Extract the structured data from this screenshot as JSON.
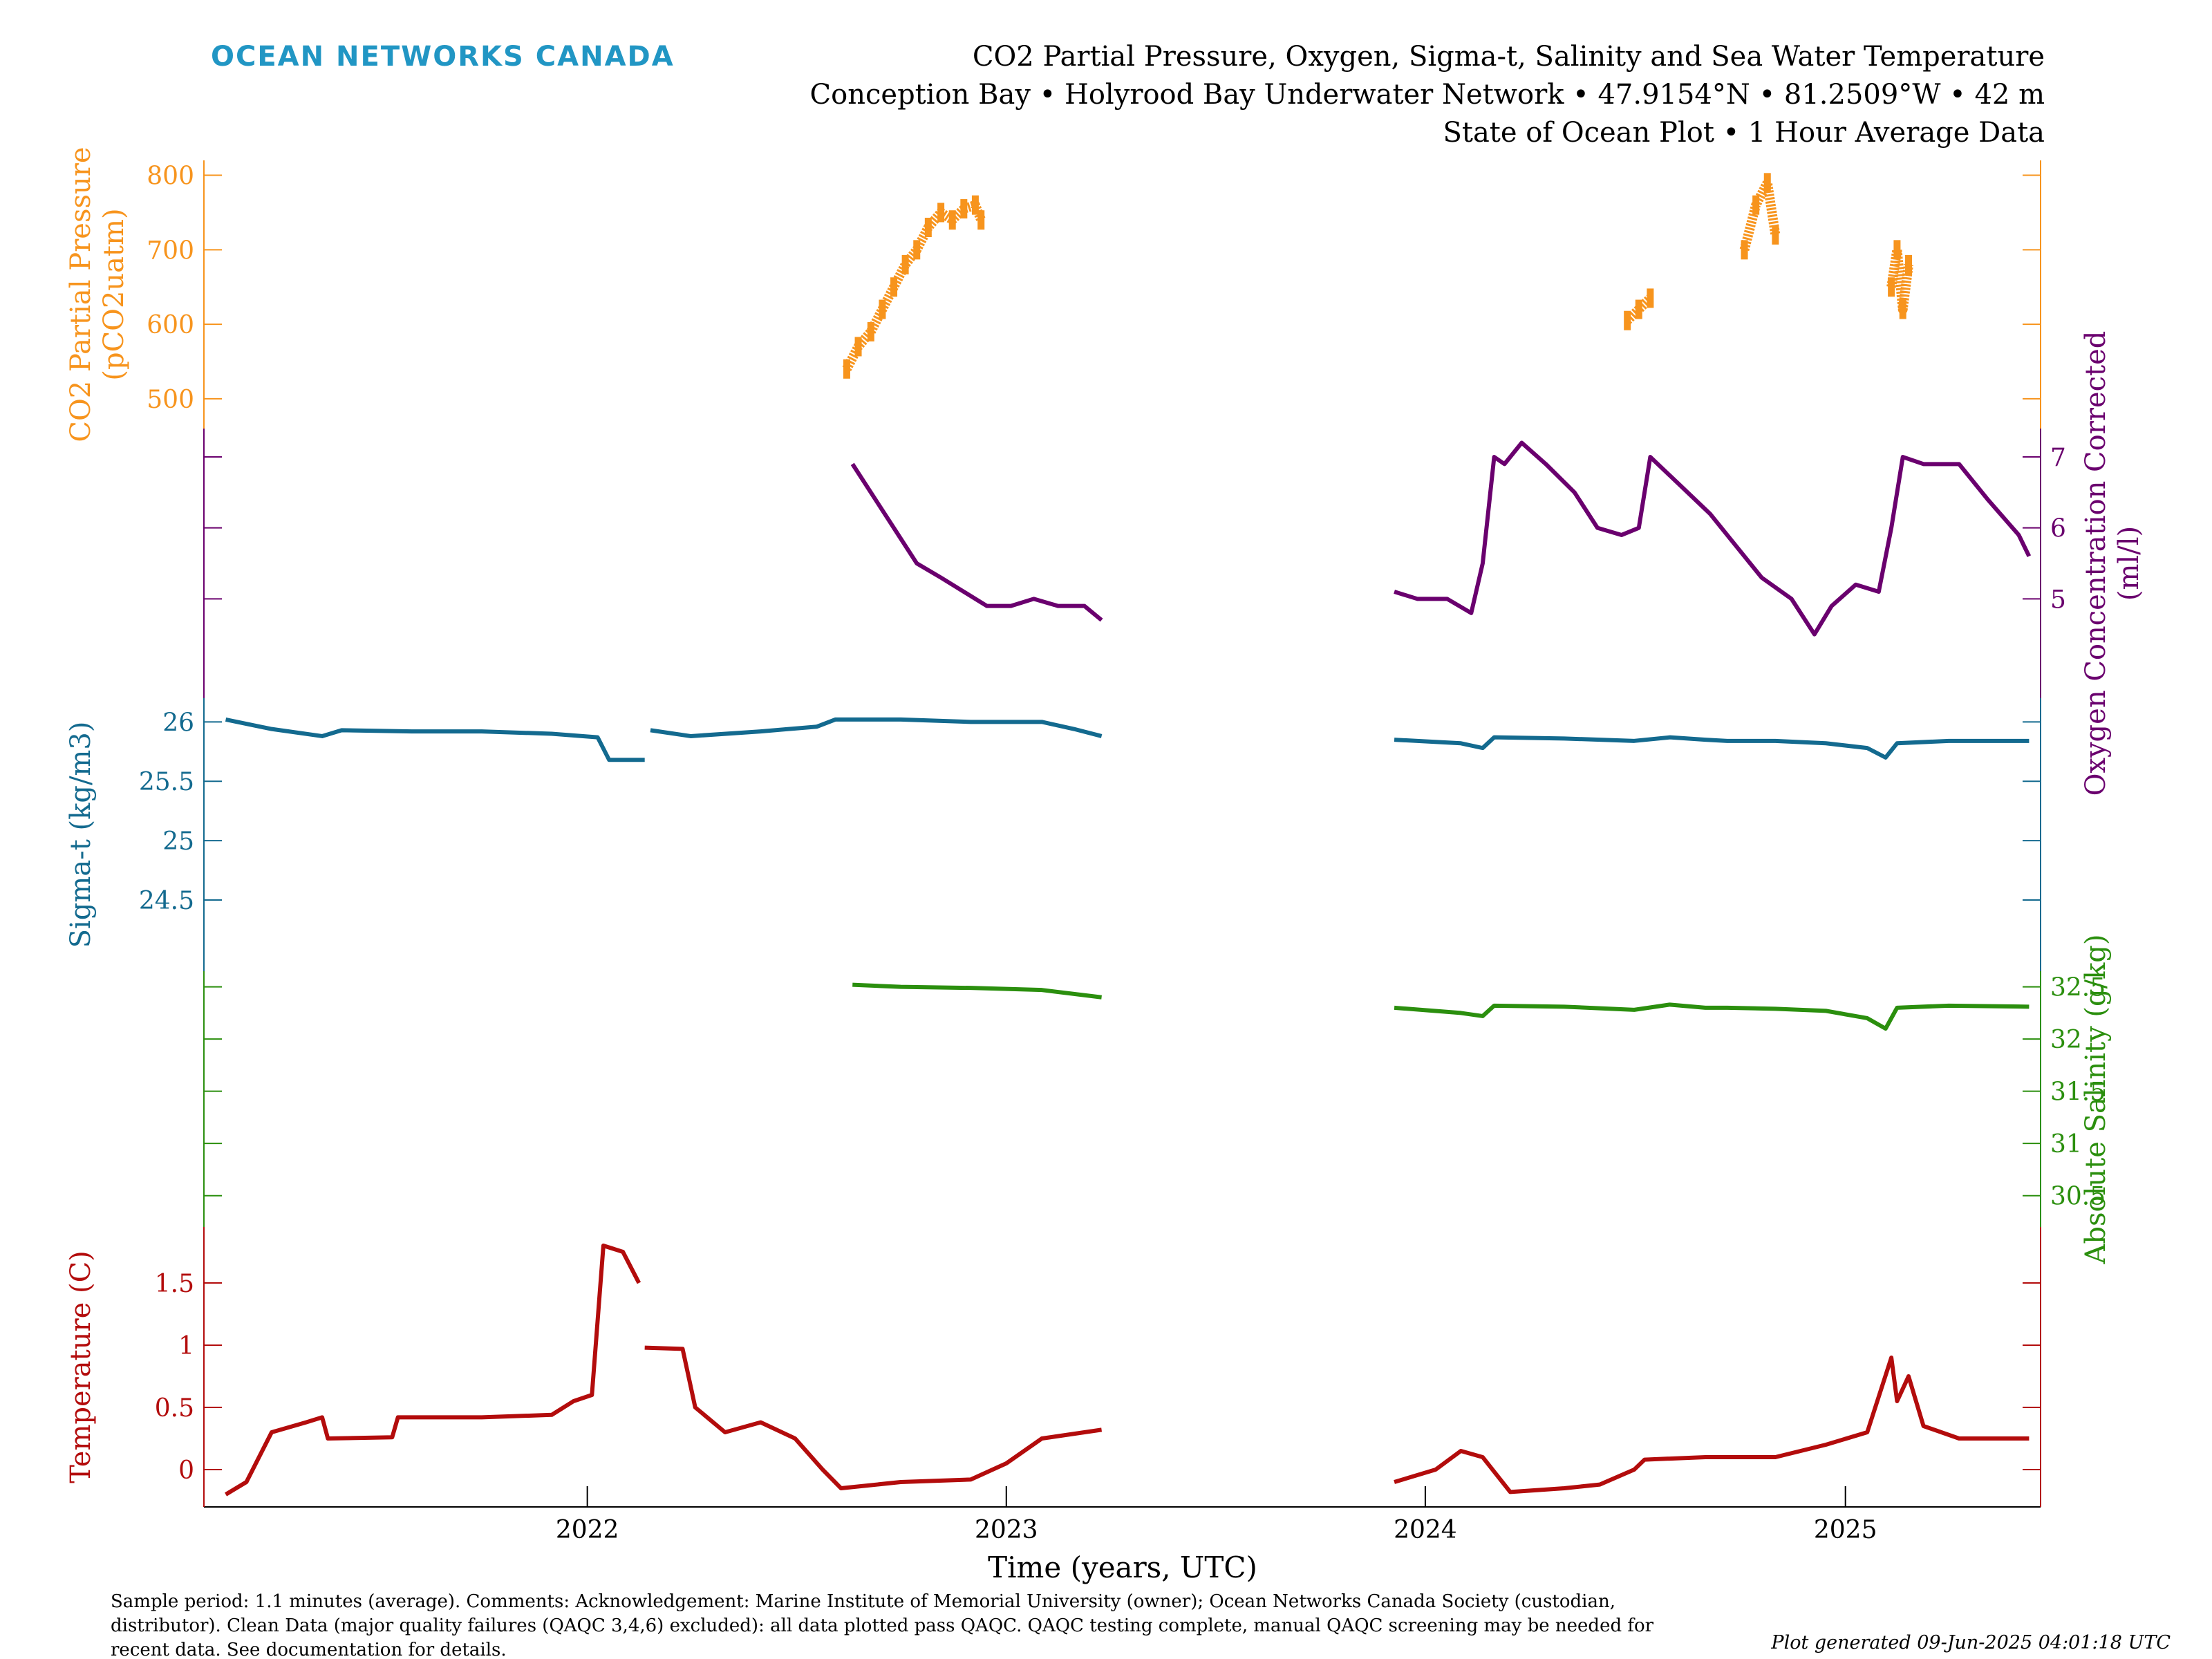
{
  "brand": {
    "name": "OCEAN NETWORKS CANADA",
    "color": "#2196c4"
  },
  "header": {
    "line1": "CO2 Partial Pressure, Oxygen, Sigma-t, Salinity and Sea Water Temperature",
    "line2": "Conception Bay • Holyrood Bay Underwater Network • 47.9154°N • 81.2509°W • 42 m",
    "line3": "State of Ocean Plot • 1 Hour Average Data"
  },
  "footer": {
    "line1": "Sample period: 1.1 minutes (average). Comments: Acknowledgement: Marine Institute of Memorial University (owner); Ocean Networks Canada Society (custodian,",
    "line2": "distributor). Clean Data (major quality failures (QAQC 3,4,6) excluded): all data plotted pass QAQC. QAQC testing complete, manual QAQC screening may be needed for",
    "line3": "recent data. See documentation for details.",
    "generated": "Plot generated 09-Jun-2025 04:01:18 UTC"
  },
  "chart_data": {
    "type": "line",
    "xlabel": "Time (years, UTC)",
    "x_ticks": [
      "2022",
      "2023",
      "2024",
      "2025"
    ],
    "x_range": [
      "2021-02-01",
      "2025-06-20"
    ],
    "grid": false,
    "legend": "none",
    "panels": [
      {
        "name": "co2",
        "ylabel": "CO2 Partial Pressure",
        "ylabel2": "(pCO2uatm)",
        "axis_side": "left",
        "color": "#f7941d",
        "ylim": [
          460,
          820
        ],
        "yticks": [
          500,
          600,
          700,
          800
        ],
        "marker_only": true,
        "segments": [
          {
            "points": [
              [
                "2022-08-15",
                540
              ],
              [
                "2022-08-25",
                570
              ],
              [
                "2022-09-05",
                590
              ],
              [
                "2022-09-15",
                620
              ],
              [
                "2022-09-25",
                650
              ],
              [
                "2022-10-05",
                680
              ],
              [
                "2022-10-15",
                700
              ],
              [
                "2022-10-25",
                730
              ],
              [
                "2022-11-05",
                750
              ],
              [
                "2022-11-15",
                740
              ],
              [
                "2022-11-25",
                755
              ],
              [
                "2022-12-05",
                760
              ],
              [
                "2022-12-10",
                740
              ]
            ]
          },
          {
            "points": [
              [
                "2024-06-25",
                605
              ],
              [
                "2024-07-05",
                620
              ],
              [
                "2024-07-15",
                635
              ]
            ]
          },
          {
            "points": [
              [
                "2024-10-05",
                700
              ],
              [
                "2024-10-15",
                760
              ],
              [
                "2024-10-25",
                790
              ],
              [
                "2024-11-01",
                720
              ]
            ]
          },
          {
            "points": [
              [
                "2025-02-10",
                650
              ],
              [
                "2025-02-15",
                700
              ],
              [
                "2025-02-20",
                620
              ],
              [
                "2025-02-25",
                680
              ]
            ]
          }
        ]
      },
      {
        "name": "oxygen",
        "ylabel": "Oxygen Concentration Corrected",
        "ylabel2": "(ml/l)",
        "axis_side": "right",
        "color": "#6a006e",
        "ylim": [
          3.6,
          7.4
        ],
        "yticks": [
          5,
          6,
          7
        ],
        "segments": [
          {
            "points": [
              [
                "2022-08-20",
                6.9
              ],
              [
                "2022-09-05",
                6.5
              ],
              [
                "2022-09-25",
                6.0
              ],
              [
                "2022-10-15",
                5.5
              ],
              [
                "2022-11-05",
                5.3
              ],
              [
                "2022-11-25",
                5.1
              ],
              [
                "2022-12-15",
                4.9
              ],
              [
                "2023-01-05",
                4.9
              ],
              [
                "2023-01-25",
                5.0
              ],
              [
                "2023-02-15",
                4.9
              ],
              [
                "2023-03-10",
                4.9
              ],
              [
                "2023-03-25",
                4.7
              ]
            ]
          },
          {
            "points": [
              [
                "2023-12-05",
                5.1
              ],
              [
                "2023-12-25",
                5.0
              ],
              [
                "2024-01-20",
                5.0
              ],
              [
                "2024-02-10",
                4.8
              ],
              [
                "2024-02-20",
                5.5
              ],
              [
                "2024-03-01",
                7.0
              ],
              [
                "2024-03-10",
                6.9
              ],
              [
                "2024-03-25",
                7.2
              ],
              [
                "2024-04-15",
                6.9
              ],
              [
                "2024-05-10",
                6.5
              ],
              [
                "2024-05-30",
                6.0
              ],
              [
                "2024-06-20",
                5.9
              ],
              [
                "2024-07-05",
                6.0
              ],
              [
                "2024-07-15",
                7.0
              ],
              [
                "2024-08-10",
                6.6
              ],
              [
                "2024-09-05",
                6.2
              ],
              [
                "2024-09-25",
                5.8
              ],
              [
                "2024-10-20",
                5.3
              ],
              [
                "2024-11-15",
                5.0
              ],
              [
                "2024-12-05",
                4.5
              ],
              [
                "2024-12-20",
                4.9
              ],
              [
                "2025-01-10",
                5.2
              ],
              [
                "2025-01-30",
                5.1
              ],
              [
                "2025-02-10",
                6.0
              ],
              [
                "2025-02-20",
                7.0
              ],
              [
                "2025-03-10",
                6.9
              ],
              [
                "2025-04-10",
                6.9
              ],
              [
                "2025-05-05",
                6.4
              ],
              [
                "2025-06-01",
                5.9
              ],
              [
                "2025-06-10",
                5.6
              ]
            ]
          }
        ]
      },
      {
        "name": "sigma_t",
        "ylabel": "Sigma-t (kg/m3)",
        "axis_side": "left",
        "color": "#136a8f",
        "ylim": [
          23.9,
          26.2
        ],
        "yticks": [
          24.5,
          25,
          25.5,
          26
        ],
        "segments": [
          {
            "points": [
              [
                "2021-02-20",
                26.02
              ],
              [
                "2021-04-01",
                25.94
              ],
              [
                "2021-05-15",
                25.88
              ],
              [
                "2021-06-01",
                25.93
              ],
              [
                "2021-08-01",
                25.92
              ],
              [
                "2021-10-01",
                25.92
              ],
              [
                "2021-12-01",
                25.9
              ],
              [
                "2022-01-10",
                25.87
              ],
              [
                "2022-01-20",
                25.68
              ],
              [
                "2022-02-20",
                25.68
              ]
            ]
          },
          {
            "points": [
              [
                "2022-02-25",
                25.93
              ],
              [
                "2022-04-01",
                25.88
              ],
              [
                "2022-06-01",
                25.92
              ],
              [
                "2022-07-20",
                25.96
              ],
              [
                "2022-08-05",
                26.02
              ],
              [
                "2022-10-01",
                26.02
              ],
              [
                "2022-12-01",
                26.0
              ],
              [
                "2023-02-01",
                26.0
              ],
              [
                "2023-03-01",
                25.94
              ],
              [
                "2023-03-25",
                25.88
              ]
            ]
          },
          {
            "points": [
              [
                "2023-12-05",
                25.85
              ],
              [
                "2024-02-01",
                25.82
              ],
              [
                "2024-02-20",
                25.78
              ],
              [
                "2024-03-01",
                25.87
              ],
              [
                "2024-05-01",
                25.86
              ],
              [
                "2024-07-01",
                25.84
              ],
              [
                "2024-08-01",
                25.87
              ],
              [
                "2024-09-01",
                25.85
              ],
              [
                "2024-09-20",
                25.84
              ],
              [
                "2024-11-01",
                25.84
              ],
              [
                "2024-12-15",
                25.82
              ],
              [
                "2025-01-20",
                25.78
              ],
              [
                "2025-02-05",
                25.7
              ],
              [
                "2025-02-15",
                25.82
              ],
              [
                "2025-04-01",
                25.84
              ],
              [
                "2025-06-10",
                25.84
              ]
            ]
          }
        ]
      },
      {
        "name": "salinity",
        "ylabel": "Absolute Salinity (g/kg)",
        "axis_side": "right",
        "color": "#2b8f0e",
        "ylim": [
          30.2,
          32.65
        ],
        "yticks": [
          30.5,
          31,
          31.5,
          32,
          32.5
        ],
        "segments": [
          {
            "points": [
              [
                "2022-08-20",
                32.52
              ],
              [
                "2022-10-01",
                32.5
              ],
              [
                "2022-12-01",
                32.49
              ],
              [
                "2023-02-01",
                32.47
              ],
              [
                "2023-03-25",
                32.4
              ]
            ]
          },
          {
            "points": [
              [
                "2023-12-05",
                32.3
              ],
              [
                "2024-02-01",
                32.25
              ],
              [
                "2024-02-20",
                32.22
              ],
              [
                "2024-03-01",
                32.32
              ],
              [
                "2024-05-01",
                32.31
              ],
              [
                "2024-07-01",
                32.28
              ],
              [
                "2024-08-01",
                32.33
              ],
              [
                "2024-09-01",
                32.3
              ],
              [
                "2024-09-20",
                32.3
              ],
              [
                "2024-11-01",
                32.29
              ],
              [
                "2024-12-15",
                32.27
              ],
              [
                "2025-01-20",
                32.2
              ],
              [
                "2025-02-05",
                32.1
              ],
              [
                "2025-02-15",
                32.3
              ],
              [
                "2025-04-01",
                32.32
              ],
              [
                "2025-06-10",
                32.31
              ]
            ]
          }
        ]
      },
      {
        "name": "temperature",
        "ylabel": "Temperature (C)",
        "axis_side": "left",
        "color": "#b30c0c",
        "ylim": [
          -0.3,
          1.95
        ],
        "yticks": [
          0,
          0.5,
          1,
          1.5
        ],
        "segments": [
          {
            "points": [
              [
                "2021-02-20",
                -0.2
              ],
              [
                "2021-03-10",
                -0.1
              ],
              [
                "2021-04-01",
                0.3
              ],
              [
                "2021-05-01",
                0.38
              ],
              [
                "2021-05-15",
                0.42
              ],
              [
                "2021-05-20",
                0.25
              ],
              [
                "2021-07-15",
                0.26
              ],
              [
                "2021-07-20",
                0.42
              ],
              [
                "2021-10-01",
                0.42
              ],
              [
                "2021-12-01",
                0.44
              ],
              [
                "2021-12-20",
                0.55
              ],
              [
                "2022-01-05",
                0.6
              ],
              [
                "2022-01-15",
                1.8
              ],
              [
                "2022-02-01",
                1.75
              ],
              [
                "2022-02-15",
                1.5
              ]
            ]
          },
          {
            "points": [
              [
                "2022-02-20",
                0.98
              ],
              [
                "2022-03-25",
                0.97
              ],
              [
                "2022-04-05",
                0.5
              ],
              [
                "2022-05-01",
                0.3
              ],
              [
                "2022-06-01",
                0.38
              ],
              [
                "2022-07-01",
                0.25
              ],
              [
                "2022-07-25",
                0.0
              ],
              [
                "2022-08-10",
                -0.15
              ],
              [
                "2022-10-01",
                -0.1
              ],
              [
                "2022-12-01",
                -0.08
              ],
              [
                "2023-01-01",
                0.05
              ],
              [
                "2023-02-01",
                0.25
              ],
              [
                "2023-03-25",
                0.32
              ]
            ]
          },
          {
            "points": [
              [
                "2023-12-05",
                -0.1
              ],
              [
                "2024-01-10",
                0.0
              ],
              [
                "2024-02-01",
                0.15
              ],
              [
                "2024-02-20",
                0.1
              ],
              [
                "2024-03-15",
                -0.18
              ],
              [
                "2024-05-01",
                -0.15
              ],
              [
                "2024-06-01",
                -0.12
              ],
              [
                "2024-07-01",
                0.0
              ],
              [
                "2024-07-10",
                0.08
              ],
              [
                "2024-09-01",
                0.1
              ],
              [
                "2024-11-01",
                0.1
              ],
              [
                "2024-12-15",
                0.2
              ],
              [
                "2025-01-20",
                0.3
              ],
              [
                "2025-02-10",
                0.9
              ],
              [
                "2025-02-15",
                0.55
              ],
              [
                "2025-02-25",
                0.75
              ],
              [
                "2025-03-10",
                0.35
              ],
              [
                "2025-04-10",
                0.25
              ],
              [
                "2025-06-10",
                0.25
              ]
            ]
          }
        ]
      }
    ]
  }
}
